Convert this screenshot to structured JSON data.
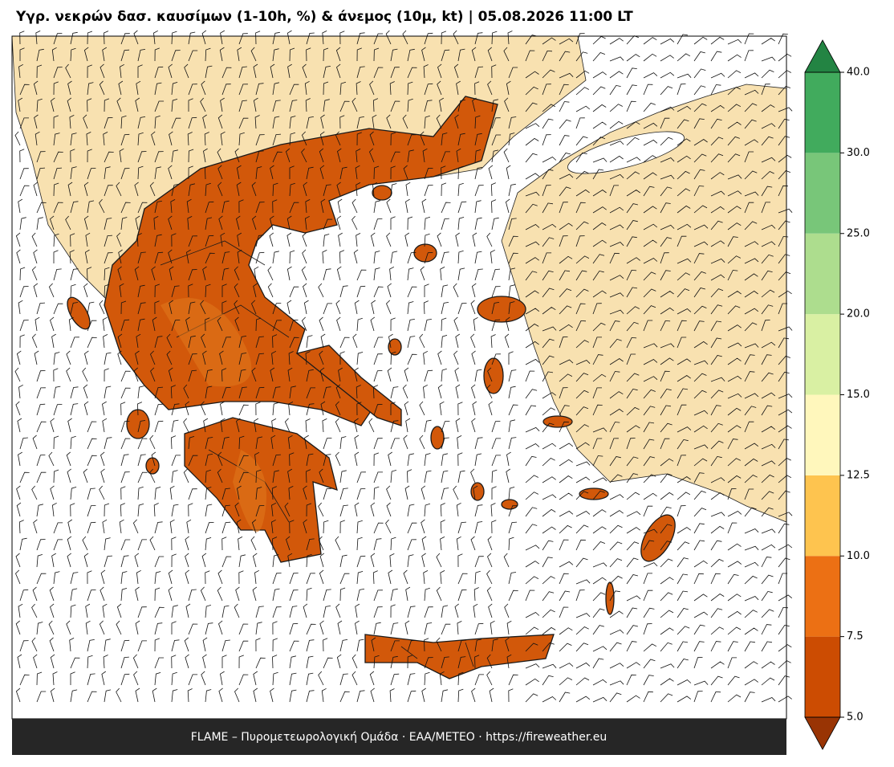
{
  "title": "Υγρ. νεκρών δασ. καυσίμων (1-10h, %) & άνεμος (10μ, kt)  |  05.08.2026 11:00 LT",
  "footer": "FLAME – Πυρομετεωρολογική Ομάδα · ΕΑΑ/METEO · https://fireweather.eu",
  "colorbar": {
    "ticks": [
      {
        "value": 5,
        "label": "5.0"
      },
      {
        "value": 7.5,
        "label": "7.5"
      },
      {
        "value": 10,
        "label": "10.0"
      },
      {
        "value": 12.5,
        "label": "12.5"
      },
      {
        "value": 15,
        "label": "15.0"
      },
      {
        "value": 20,
        "label": "20.0"
      },
      {
        "value": 25,
        "label": "25.0"
      },
      {
        "value": 30,
        "label": "30.0"
      },
      {
        "value": 40,
        "label": "40.0"
      }
    ],
    "colors": [
      "#cc4c02",
      "#ec7014",
      "#fec44f",
      "#fff7bc",
      "#d9f0a3",
      "#addd8e",
      "#78c679",
      "#41ab5d"
    ],
    "under_color": "#993404",
    "over_color": "#238443"
  }
}
